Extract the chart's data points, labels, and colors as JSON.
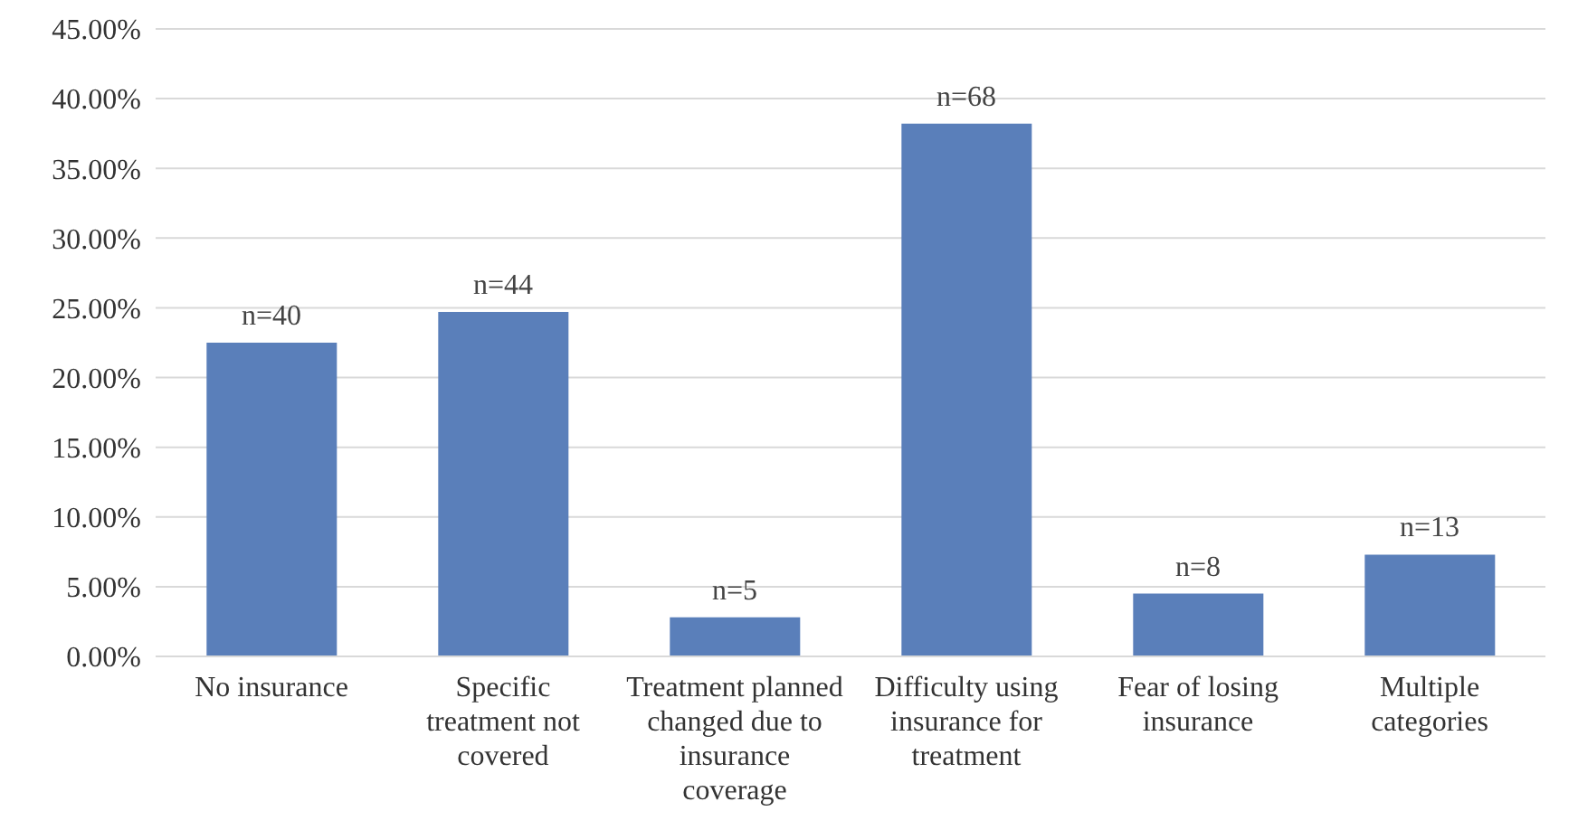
{
  "chart_data": {
    "type": "bar",
    "categories": [
      "No insurance",
      "Specific treatment not covered",
      "Treatment planned changed due to insurance coverage",
      "Difficulty using insurance for treatment",
      "Fear of losing insurance",
      "Multiple categories"
    ],
    "values": [
      22.5,
      24.7,
      2.8,
      38.2,
      4.5,
      7.3
    ],
    "annotations": [
      {
        "text": "n=40",
        "x": "No insurance",
        "y": 22.5
      },
      {
        "text": "n=44",
        "x": "Specific treatment not covered",
        "y": 24.7
      },
      {
        "text": "n=5",
        "x": "Treatment planned changed due to insurance coverage",
        "y": 2.8
      },
      {
        "text": "n=68",
        "x": "Difficulty using insurance for treatment",
        "y": 38.2
      },
      {
        "text": "n=8",
        "x": "Fear of losing insurance",
        "y": 4.5
      },
      {
        "text": "n=13",
        "x": "Multiple categories",
        "y": 7.3
      }
    ],
    "color": "#5a7fba",
    "ylim": [
      0,
      45
    ],
    "yticks": [
      {
        "value": 0,
        "label": "0.00%"
      },
      {
        "value": 5,
        "label": "5.00%"
      },
      {
        "value": 10,
        "label": "10.00%"
      },
      {
        "value": 15,
        "label": "15.00%"
      },
      {
        "value": 20,
        "label": "20.00%"
      },
      {
        "value": 25,
        "label": "25.00%"
      },
      {
        "value": 30,
        "label": "30.00%"
      },
      {
        "value": 35,
        "label": "35.00%"
      },
      {
        "value": 40,
        "label": "40.00%"
      },
      {
        "value": 45,
        "label": "45.00%"
      }
    ],
    "grid": "y",
    "legend": false
  }
}
